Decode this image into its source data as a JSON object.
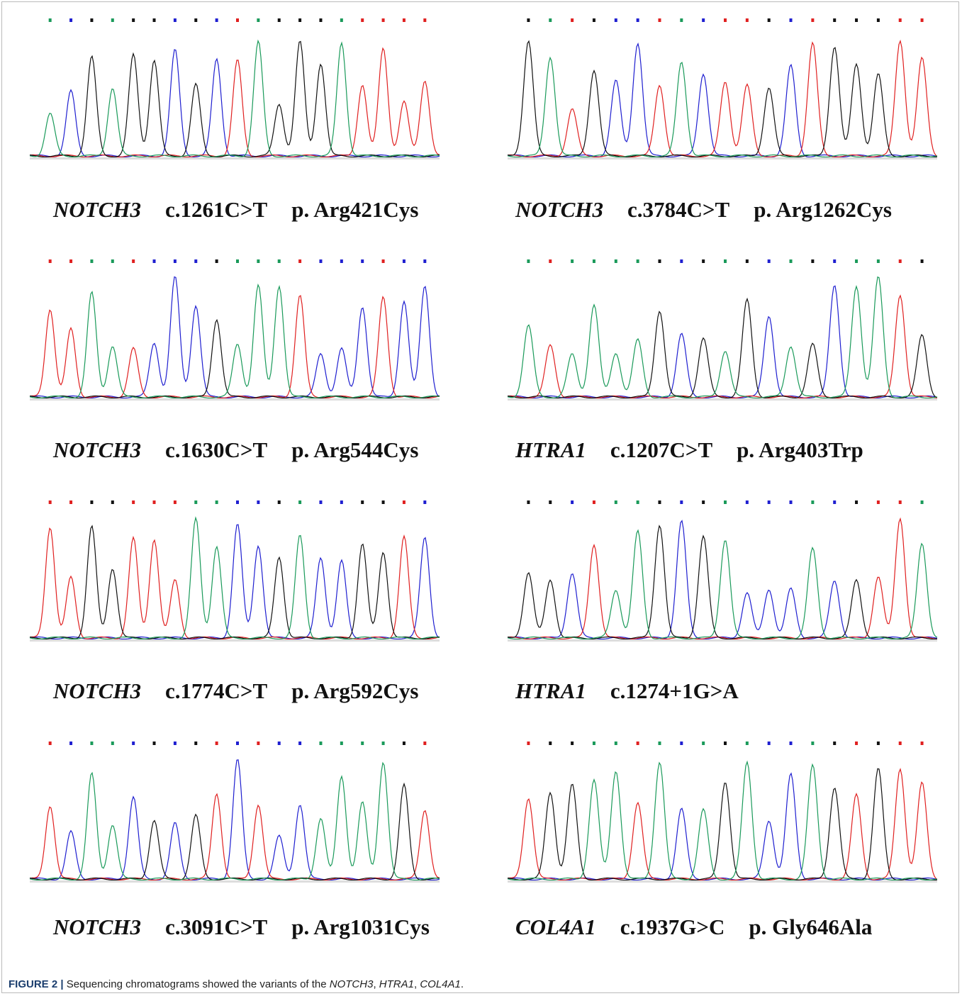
{
  "panels": [
    {
      "gene": "NOTCH3",
      "cdna": "c.1261C>T",
      "protein": "p. Arg421Cys"
    },
    {
      "gene": "NOTCH3",
      "cdna": "c.3784C>T",
      "protein": "p. Arg1262Cys"
    },
    {
      "gene": "NOTCH3",
      "cdna": "c.1630C>T",
      "protein": "p. Arg544Cys"
    },
    {
      "gene": "HTRA1",
      "cdna": "c.1207C>T",
      "protein": "p. Arg403Trp"
    },
    {
      "gene": "NOTCH3",
      "cdna": "c.1774C>T",
      "protein": "p. Arg592Cys"
    },
    {
      "gene": "HTRA1",
      "cdna": "c.1274+1G>A"
    },
    {
      "gene": "NOTCH3",
      "cdna": "c.3091C>T",
      "protein": "p. Arg1031Cys"
    },
    {
      "gene": "COL4A1",
      "cdna": "c.1937G>C",
      "protein": "p. Gly646Ala"
    }
  ],
  "caption": {
    "label": "FIGURE 2 |",
    "parts": [
      "Sequencing chromatograms showed the variants of the ",
      "NOTCH3",
      ", ",
      "HTRA1",
      ", ",
      "COL4A1",
      "."
    ]
  }
}
